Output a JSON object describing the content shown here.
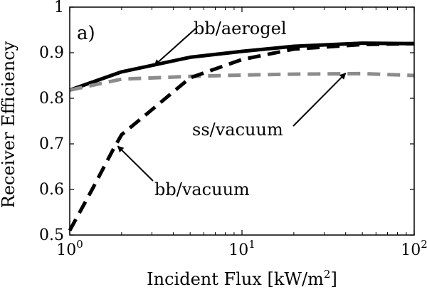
{
  "chart_data": {
    "type": "line",
    "panel_label": "a)",
    "xlabel": "Incident Flux [kW/m",
    "xlabel_sup": "2",
    "xlabel_end": "]",
    "ylabel": "Receiver Efficiency",
    "xscale": "log",
    "xlim": [
      1,
      100
    ],
    "ylim": [
      0.5,
      1.0
    ],
    "grid": false,
    "x_ticks": [
      {
        "base": "10",
        "exp": "0",
        "value": 1
      },
      {
        "base": "10",
        "exp": "1",
        "value": 10
      },
      {
        "base": "10",
        "exp": "2",
        "value": 100
      }
    ],
    "y_ticks": [
      {
        "label": "0.5",
        "value": 0.5
      },
      {
        "label": "0.6",
        "value": 0.6
      },
      {
        "label": "0.7",
        "value": 0.7
      },
      {
        "label": "0.8",
        "value": 0.8
      },
      {
        "label": "0.9",
        "value": 0.9
      },
      {
        "label": "1",
        "value": 1.0
      }
    ],
    "series": [
      {
        "name": "bb/aerogel",
        "color": "#000000",
        "style": "solid",
        "x": [
          1,
          2,
          5,
          10,
          20,
          50,
          100
        ],
        "y": [
          0.818,
          0.858,
          0.89,
          0.903,
          0.914,
          0.921,
          0.92
        ]
      },
      {
        "name": "ss/vacuum",
        "color": "#8c8c8c",
        "style": "dashed",
        "x": [
          1,
          2,
          5,
          10,
          20,
          50,
          100
        ],
        "y": [
          0.818,
          0.842,
          0.848,
          0.851,
          0.853,
          0.854,
          0.85
        ]
      },
      {
        "name": "bb/vacuum",
        "color": "#000000",
        "style": "dashed",
        "x": [
          1,
          1.35,
          1.8,
          2,
          3,
          5,
          10,
          20,
          50,
          100
        ],
        "y": [
          0.51,
          0.6,
          0.69,
          0.72,
          0.775,
          0.845,
          0.885,
          0.908,
          0.918,
          0.92
        ]
      }
    ],
    "annotations": [
      {
        "text": "bb/aerogel",
        "target_x": 3.1,
        "target_y": 0.872
      },
      {
        "text": "ss/vacuum",
        "target_x": 40,
        "target_y": 0.855
      },
      {
        "text": "bb/vacuum",
        "target_x": 1.9,
        "target_y": 0.695
      }
    ]
  }
}
